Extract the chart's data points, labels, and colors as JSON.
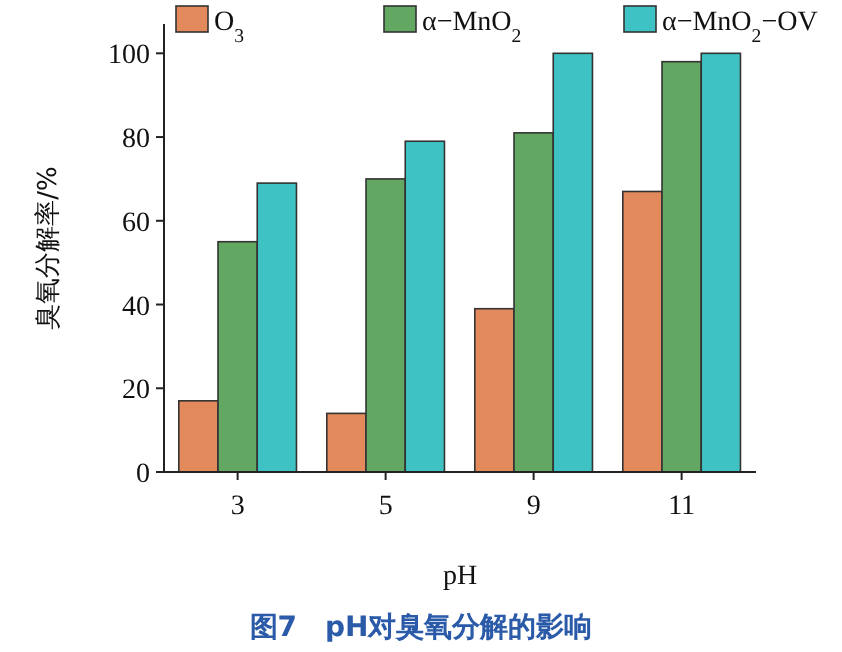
{
  "chart_data": {
    "type": "bar",
    "title": "图7　pH对臭氧分解的影响",
    "xlabel": "pH",
    "ylabel": "臭氧分解率/%",
    "categories": [
      "3",
      "5",
      "9",
      "11"
    ],
    "series": [
      {
        "name": "O$_{3}$",
        "color": "#e38a5c",
        "values": [
          17,
          14,
          39,
          67
        ]
      },
      {
        "name": "α−MnO$_{2}$",
        "color": "#62a762",
        "values": [
          55,
          70,
          81,
          98
        ]
      },
      {
        "name": "α−MnO$_{2}$−OV",
        "color": "#3ec2c4",
        "values": [
          69,
          79,
          100,
          100
        ]
      }
    ],
    "ylim": [
      0,
      107
    ],
    "yticks": [
      0,
      20,
      40,
      60,
      80,
      100
    ],
    "legend": "top",
    "grid": false
  }
}
